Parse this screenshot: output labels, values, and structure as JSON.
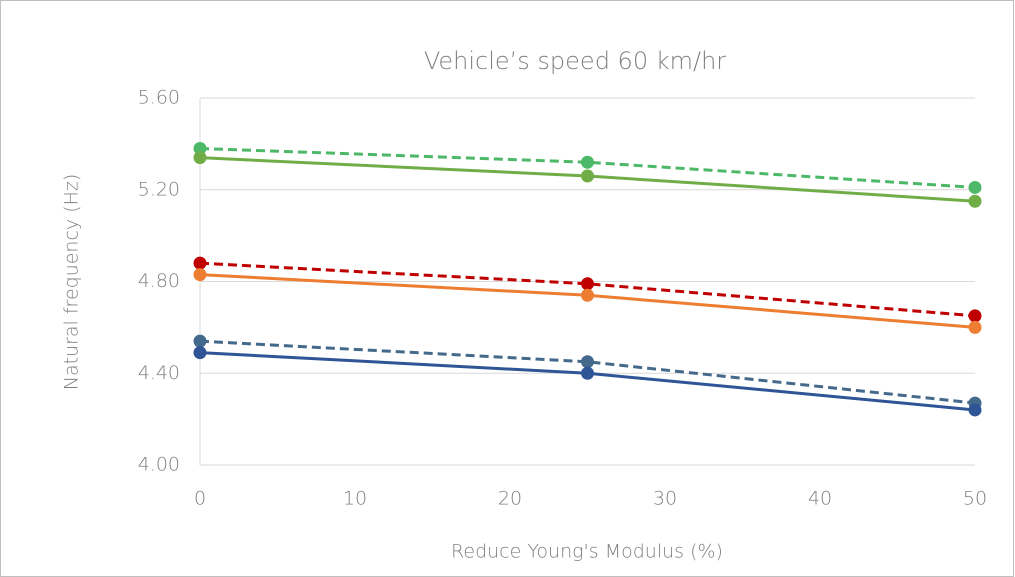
{
  "chart_data": {
    "type": "line",
    "title": "Vehicle’s speed 60 km/hr",
    "x_label": "Reduce Young's Modulus (%)",
    "y_label": "Natural frequency (Hz)",
    "x": [
      0,
      25,
      50
    ],
    "series": [
      {
        "color": "#4cb868",
        "dashed": true,
        "values": [
          5.38,
          5.32,
          5.21
        ]
      },
      {
        "color": "#70ad47",
        "dashed": false,
        "values": [
          5.34,
          5.26,
          5.15
        ]
      },
      {
        "color": "#c00000",
        "dashed": true,
        "values": [
          4.88,
          4.79,
          4.65
        ]
      },
      {
        "color": "#ed7d31",
        "dashed": false,
        "values": [
          4.83,
          4.74,
          4.6
        ]
      },
      {
        "color": "#44698a",
        "dashed": true,
        "values": [
          4.54,
          4.45,
          4.27
        ]
      },
      {
        "color": "#2f5597",
        "dashed": false,
        "values": [
          4.49,
          4.4,
          4.24
        ]
      }
    ],
    "xlim": [
      0,
      50
    ],
    "xticks": [
      0,
      10,
      20,
      30,
      40,
      50
    ],
    "ylim": [
      4,
      5.6
    ],
    "yticks": [
      {
        "value": 4,
        "label": "4.00"
      },
      {
        "value": 4.4,
        "label": "4.40"
      },
      {
        "value": 4.8,
        "label": "4.80"
      },
      {
        "value": 5.2,
        "label": "5.20"
      },
      {
        "value": 5.6,
        "label": "5.60"
      }
    ],
    "grid": true
  }
}
